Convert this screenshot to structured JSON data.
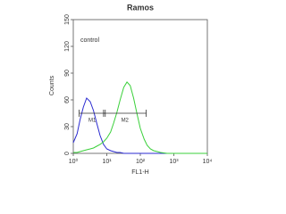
{
  "chart_data": {
    "type": "line",
    "title": "Ramos",
    "annotation": "control",
    "xlabel": "FL1-H",
    "ylabel": "Counts",
    "xscale": "log",
    "x": [
      1,
      1.3,
      1.6,
      2,
      2.5,
      3.2,
      4,
      5,
      6.3,
      8,
      10,
      13,
      16,
      20,
      25,
      32,
      40,
      50,
      63,
      80,
      100,
      130,
      160,
      200,
      250,
      320,
      400,
      630,
      1000,
      10000
    ],
    "series": [
      {
        "color": "#2a2ad0",
        "values": [
          12,
          22,
          38,
          52,
          62,
          58,
          48,
          34,
          20,
          10,
          5,
          3,
          2,
          1,
          1,
          0,
          0,
          0,
          0,
          0,
          0,
          0,
          0,
          0,
          0,
          0,
          0,
          0,
          0,
          0
        ]
      },
      {
        "color": "#3ad03a",
        "values": [
          1,
          1,
          2,
          3,
          4,
          5,
          6,
          8,
          10,
          13,
          17,
          24,
          34,
          46,
          60,
          74,
          80,
          76,
          62,
          44,
          28,
          16,
          9,
          5,
          3,
          2,
          1,
          0,
          0,
          0
        ]
      }
    ],
    "gates": [
      {
        "label": "M1",
        "range": [
          1.5,
          9
        ],
        "y": 45
      },
      {
        "label": "M2",
        "range": [
          8,
          150
        ],
        "y": 45
      }
    ],
    "xlim": [
      1,
      10000
    ],
    "xticks": [
      {
        "value": 1,
        "label": "10⁰"
      },
      {
        "value": 10,
        "label": "10¹"
      },
      {
        "value": 100,
        "label": "10²"
      },
      {
        "value": 1000,
        "label": "10³"
      },
      {
        "value": 10000,
        "label": "10⁴"
      }
    ],
    "ylim": [
      0,
      150
    ],
    "yticks": [
      0,
      30,
      60,
      90,
      120,
      150
    ]
  }
}
